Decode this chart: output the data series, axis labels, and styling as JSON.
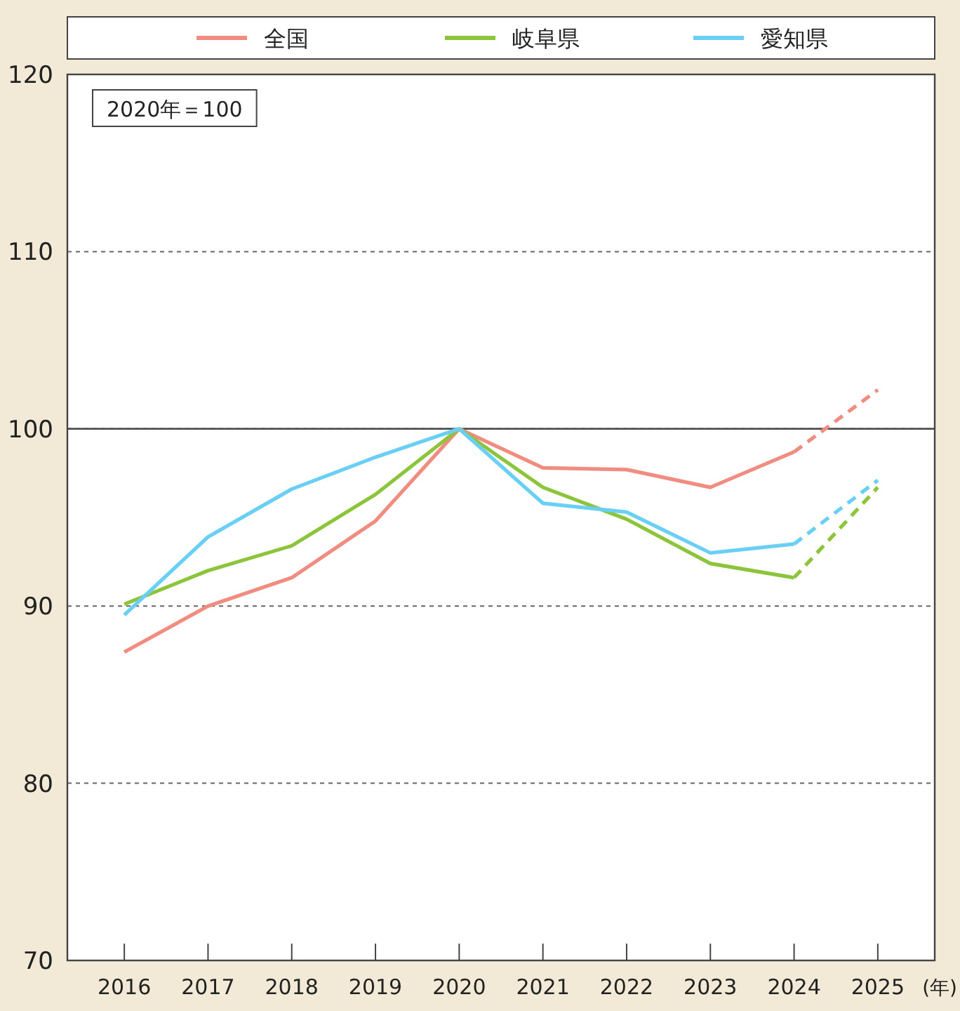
{
  "chart_data": {
    "type": "line",
    "categories": [
      "2016",
      "2017",
      "2018",
      "2019",
      "2020",
      "2021",
      "2022",
      "2023",
      "2024",
      "2025"
    ],
    "xlabel": "(年)",
    "series": [
      {
        "name": "全国",
        "color": "#f08c80",
        "values": [
          87.4,
          90.0,
          91.6,
          94.8,
          100,
          97.8,
          97.7,
          96.7,
          98.7,
          null
        ]
      },
      {
        "name": "岐阜県",
        "color": "#8cc43c",
        "values": [
          90.1,
          92.0,
          93.4,
          96.3,
          100,
          96.7,
          94.9,
          92.4,
          91.6,
          null
        ]
      },
      {
        "name": "愛知県",
        "color": "#6acff5",
        "values": [
          89.5,
          93.9,
          96.6,
          98.4,
          100,
          95.8,
          95.3,
          93.0,
          93.5,
          null
        ]
      },
      {
        "color": "#f08c80",
        "line_style": "dashed",
        "values": [
          null,
          null,
          null,
          null,
          null,
          null,
          null,
          null,
          98.7,
          102.2
        ]
      },
      {
        "color": "#8cc43c",
        "line_style": "dashed",
        "values": [
          null,
          null,
          null,
          null,
          null,
          null,
          null,
          null,
          91.6,
          96.7
        ]
      },
      {
        "color": "#6acff5",
        "line_style": "dashed",
        "values": [
          null,
          null,
          null,
          null,
          null,
          null,
          null,
          null,
          93.5,
          97.1
        ]
      }
    ],
    "ylim": [
      70,
      120
    ],
    "yticks": [
      70,
      80,
      90,
      100,
      110,
      120
    ],
    "grid": "y",
    "ref_lines": [
      {
        "axis": "y",
        "value": 100
      }
    ],
    "annotations": [
      "2020年＝100"
    ],
    "legend": "top",
    "marker": "none"
  }
}
